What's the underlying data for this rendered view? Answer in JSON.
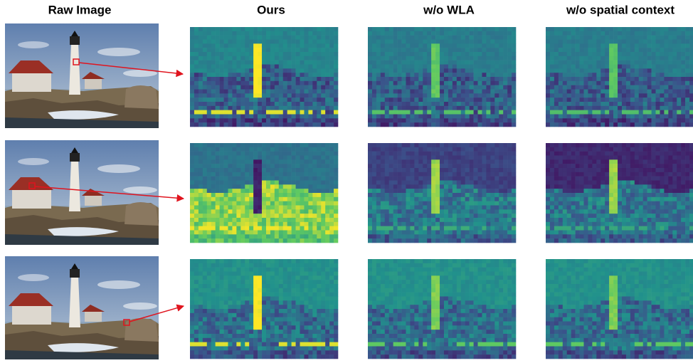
{
  "columns": [
    "Raw Image",
    "Ours",
    "w/o WLA",
    "w/o spatial context"
  ]
}
